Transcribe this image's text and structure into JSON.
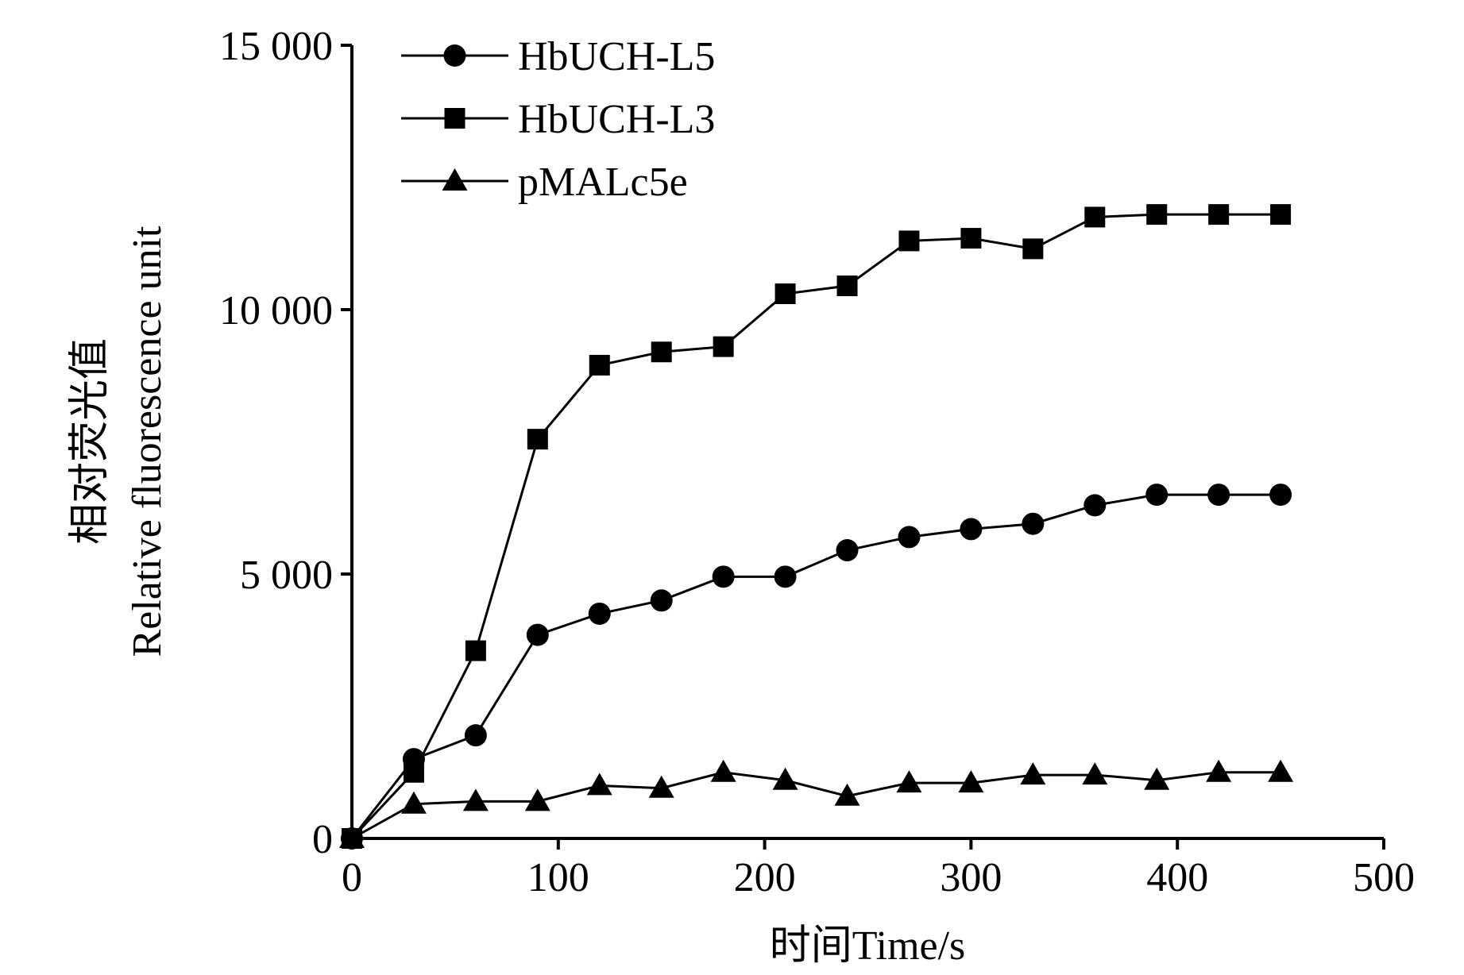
{
  "chart_data": {
    "type": "line",
    "xlabel": "时间Time/s",
    "ylabel": [
      "相对荧光值",
      "Relative fluorescence unit"
    ],
    "xlim": [
      0,
      500
    ],
    "ylim": [
      0,
      15000
    ],
    "x_ticks": [
      0,
      100,
      200,
      300,
      400,
      500
    ],
    "x_tick_labels": [
      "0",
      "100",
      "200",
      "300",
      "400",
      "500"
    ],
    "y_ticks": [
      0,
      5000,
      10000,
      15000
    ],
    "y_tick_labels": [
      "0",
      "5 000",
      "10 000",
      "15 000"
    ],
    "grid": false,
    "legend_position": "top-left",
    "x": [
      0,
      30,
      60,
      90,
      120,
      150,
      180,
      210,
      240,
      270,
      300,
      330,
      360,
      390,
      420,
      450
    ],
    "series": [
      {
        "name": "HbUCH-L5",
        "marker": "circle",
        "values": [
          0,
          1500,
          1950,
          3850,
          4250,
          4500,
          4950,
          4950,
          5450,
          5700,
          5850,
          5950,
          6300,
          6500,
          6500,
          6500
        ]
      },
      {
        "name": "HbUCH-L3",
        "marker": "square",
        "values": [
          0,
          1250,
          3550,
          7550,
          8950,
          9200,
          9300,
          10300,
          10450,
          11300,
          11350,
          11150,
          11750,
          11800,
          11800,
          11800
        ]
      },
      {
        "name": "pMALc5e",
        "marker": "triangle",
        "values": [
          0,
          650,
          700,
          700,
          1000,
          950,
          1250,
          1100,
          800,
          1050,
          1050,
          1200,
          1200,
          1100,
          1250,
          1250
        ]
      }
    ]
  }
}
